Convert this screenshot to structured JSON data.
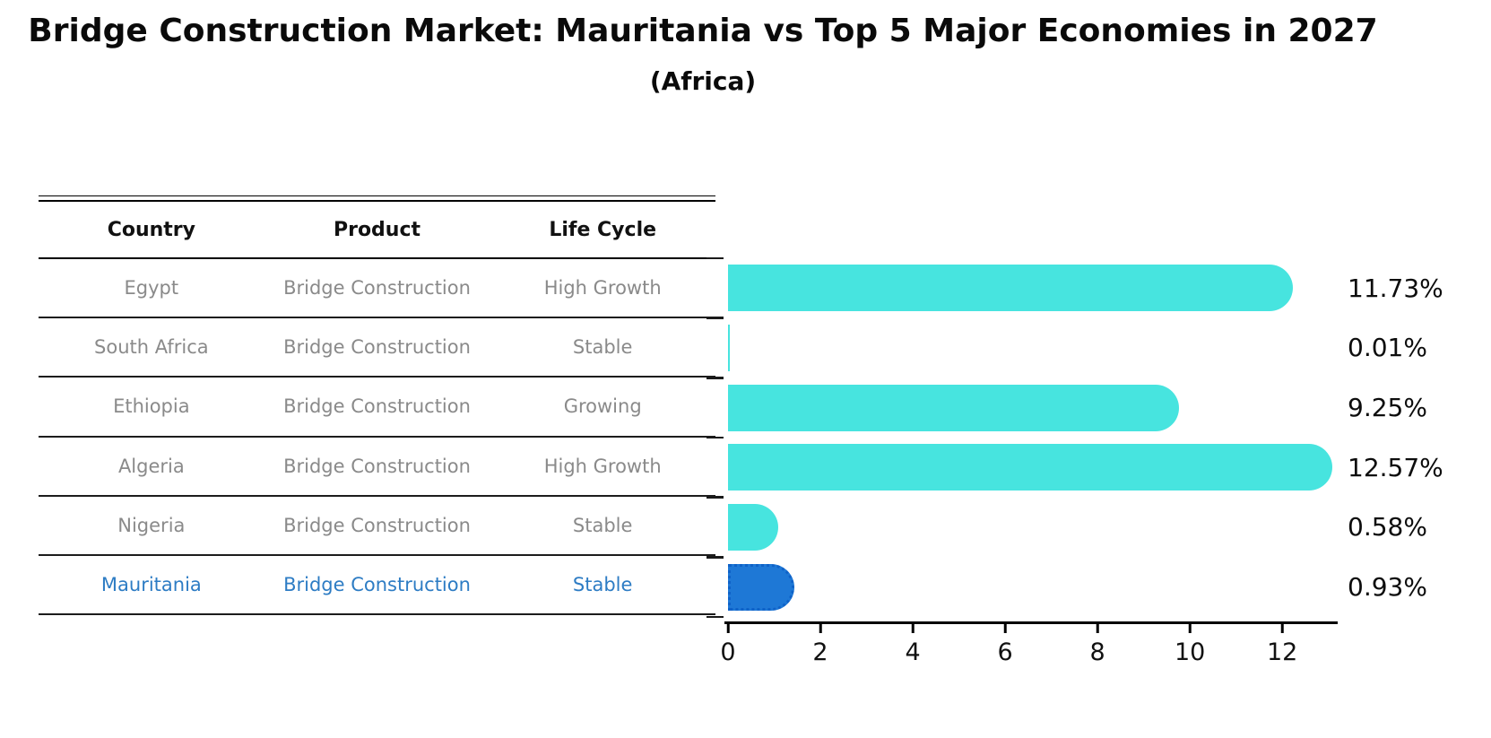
{
  "title": "Bridge Construction Market: Mauritania vs Top 5 Major Economies in 2027",
  "subtitle": "(Africa)",
  "table": {
    "headers": {
      "country": "Country",
      "product": "Product",
      "life_cycle": "Life Cycle"
    },
    "rows": [
      {
        "country": "Egypt",
        "product": "Bridge Construction",
        "life_cycle": "High Growth",
        "highlight": false
      },
      {
        "country": "South Africa",
        "product": "Bridge Construction",
        "life_cycle": "Stable",
        "highlight": false
      },
      {
        "country": "Ethiopia",
        "product": "Bridge Construction",
        "life_cycle": "Growing",
        "highlight": false
      },
      {
        "country": "Algeria",
        "product": "Bridge Construction",
        "life_cycle": "High Growth",
        "highlight": false
      },
      {
        "country": "Nigeria",
        "product": "Bridge Construction",
        "life_cycle": "Stable",
        "highlight": false
      },
      {
        "country": "Mauritania",
        "product": "Bridge Construction",
        "life_cycle": "Stable",
        "highlight": true
      }
    ]
  },
  "chart_data": {
    "type": "bar",
    "orientation": "horizontal",
    "title": "Bridge Construction Market: Mauritania vs Top 5 Major Economies in 2027 (Africa)",
    "categories": [
      "Egypt",
      "South Africa",
      "Ethiopia",
      "Algeria",
      "Nigeria",
      "Mauritania"
    ],
    "values": [
      11.73,
      0.01,
      9.25,
      12.57,
      0.58,
      0.93
    ],
    "value_labels": [
      "11.73%",
      "0.01%",
      "9.25%",
      "12.57%",
      "0.58%",
      "0.93%"
    ],
    "x_ticks": [
      0,
      2,
      4,
      6,
      8,
      10,
      12
    ],
    "xlim": [
      0,
      13.2
    ],
    "grid": false,
    "legend": "none",
    "bar_color": "#47e4df",
    "highlight_color": "#1e78d6",
    "highlight_border_color": "#0f62c8",
    "highlight_index": 5
  },
  "colors": {
    "background": "#ffffff",
    "table_text": "#8a8a8a",
    "table_header_text": "#111111",
    "highlight_text": "#2d7cc4",
    "axis": "#000000"
  }
}
